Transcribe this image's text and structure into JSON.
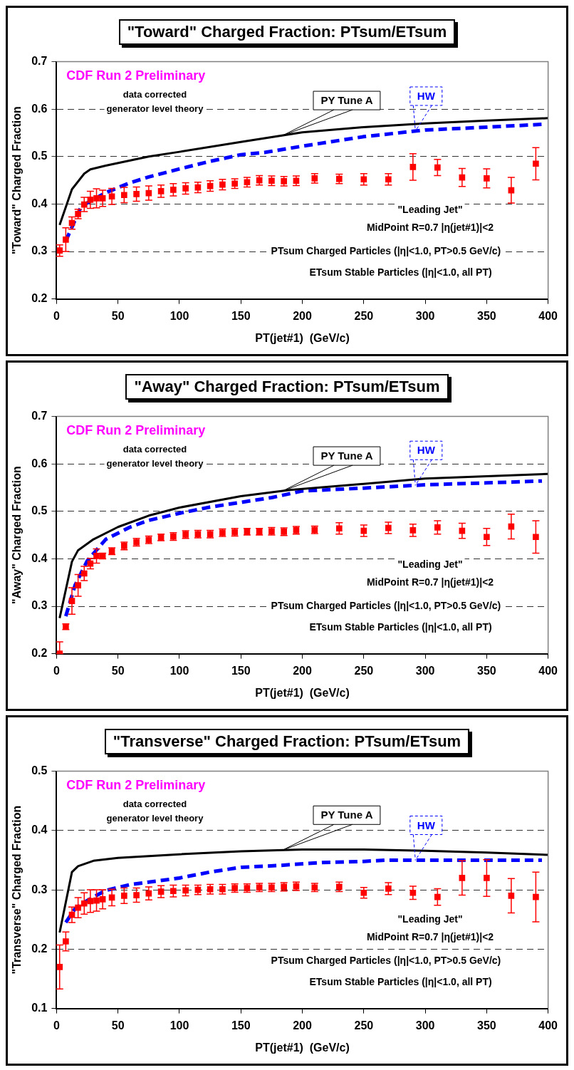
{
  "chart_data": [
    {
      "type": "line",
      "title": "\"Toward\" Charged Fraction: PTsum/ETsum",
      "xlabel": "PT(jet#1)  (GeV/c)",
      "ylabel": "\"Toward\" Charged Fraction",
      "xlim": [
        0,
        400
      ],
      "xticks": [
        0,
        50,
        100,
        150,
        200,
        250,
        300,
        350,
        400
      ],
      "ylim": [
        0.2,
        0.7
      ],
      "yticks": [
        0.2,
        0.3,
        0.4,
        0.5,
        0.6,
        0.7
      ],
      "grid": "y",
      "annotations": [
        "CDF Run 2 Preliminary",
        "data corrected",
        "generator level theory",
        "\"Leading Jet\"",
        "MidPoint R=0.7 |η(jet#1)|<2",
        "PTsum Charged Particles (|η|<1.0, PT>0.5 GeV/c)",
        "ETsum Stable Particles (|η|<1.0, all PT)"
      ],
      "series": [
        {
          "type": "scatter",
          "color": "#ff0000",
          "marker": "square",
          "x": [
            2.5,
            7.5,
            12.5,
            17.5,
            22.5,
            27.5,
            32.5,
            37.5,
            45,
            55,
            65,
            75,
            85,
            95,
            105,
            115,
            125,
            135,
            145,
            155,
            165,
            175,
            185,
            195,
            210,
            230,
            250,
            270,
            290,
            310,
            330,
            350,
            370,
            390
          ],
          "values": [
            0.302,
            0.325,
            0.36,
            0.379,
            0.399,
            0.409,
            0.412,
            0.412,
            0.416,
            0.419,
            0.421,
            0.423,
            0.427,
            0.43,
            0.433,
            0.435,
            0.438,
            0.441,
            0.443,
            0.446,
            0.45,
            0.449,
            0.448,
            0.449,
            0.454,
            0.453,
            0.452,
            0.452,
            0.478,
            0.477,
            0.456,
            0.454,
            0.429,
            0.485
          ],
          "errors": [
            0.012,
            0.025,
            0.013,
            0.01,
            0.015,
            0.018,
            0.02,
            0.017,
            0.017,
            0.016,
            0.015,
            0.015,
            0.013,
            0.013,
            0.012,
            0.011,
            0.011,
            0.011,
            0.01,
            0.01,
            0.01,
            0.01,
            0.01,
            0.01,
            0.01,
            0.01,
            0.012,
            0.012,
            0.028,
            0.017,
            0.019,
            0.02,
            0.027,
            0.034
          ]
        },
        {
          "type": "line",
          "name": "PY Tune A",
          "color": "#000000",
          "marker": "none",
          "line_style": "solid",
          "x": [
            2.5,
            12.5,
            22.5,
            27.5,
            40,
            75,
            100,
            150,
            200,
            250,
            300,
            350,
            400
          ],
          "values": [
            0.356,
            0.431,
            0.464,
            0.473,
            0.481,
            0.5,
            0.51,
            0.531,
            0.551,
            0.562,
            0.57,
            0.576,
            0.581
          ]
        },
        {
          "type": "line",
          "name": "HW",
          "color": "#0000ff",
          "marker": "none",
          "line_style": "dashed",
          "x": [
            7.5,
            20,
            40,
            60,
            75,
            100,
            125,
            150,
            170,
            200,
            250,
            300,
            350,
            395
          ],
          "values": [
            0.322,
            0.395,
            0.424,
            0.445,
            0.457,
            0.474,
            0.49,
            0.504,
            0.509,
            0.522,
            0.542,
            0.556,
            0.562,
            0.568
          ]
        }
      ]
    },
    {
      "type": "line",
      "title": "\"Away\" Charged Fraction: PTsum/ETsum",
      "xlabel": "PT(jet#1)  (GeV/c)",
      "ylabel": "\"Away\" Charged Fraction",
      "xlim": [
        0,
        400
      ],
      "xticks": [
        0,
        50,
        100,
        150,
        200,
        250,
        300,
        350,
        400
      ],
      "ylim": [
        0.2,
        0.7
      ],
      "yticks": [
        0.2,
        0.3,
        0.4,
        0.5,
        0.6,
        0.7
      ],
      "grid": "y",
      "annotations": [
        "CDF Run 2 Preliminary",
        "data corrected",
        "generator level theory",
        "\"Leading Jet\"",
        "MidPoint R=0.7 |η(jet#1)|<2",
        "PTsum Charged Particles (|η|<1.0, PT>0.5 GeV/c)",
        "ETsum Stable Particles (|η|<1.0, all PT)"
      ],
      "series": [
        {
          "type": "scatter",
          "color": "#ff0000",
          "marker": "square",
          "x": [
            2.5,
            7.5,
            12.5,
            17.5,
            22.5,
            27.5,
            32.5,
            37.5,
            45,
            55,
            65,
            75,
            85,
            95,
            105,
            115,
            125,
            135,
            145,
            155,
            165,
            175,
            185,
            195,
            210,
            230,
            250,
            270,
            290,
            310,
            330,
            350,
            370,
            390
          ],
          "values": [
            0.2,
            0.257,
            0.311,
            0.344,
            0.369,
            0.39,
            0.406,
            0.406,
            0.416,
            0.427,
            0.435,
            0.44,
            0.445,
            0.447,
            0.451,
            0.452,
            0.452,
            0.455,
            0.456,
            0.457,
            0.457,
            0.458,
            0.457,
            0.46,
            0.461,
            0.464,
            0.459,
            0.465,
            0.46,
            0.466,
            0.459,
            0.446,
            0.468,
            0.446
          ],
          "errors": [
            [
              0.2,
              0.225
            ],
            0.006,
            0.028,
            0.023,
            0.015,
            0.011,
            0.015,
            0.006,
            0.007,
            0.008,
            0.008,
            0.008,
            0.007,
            0.008,
            0.008,
            0.008,
            0.008,
            0.008,
            0.008,
            0.007,
            0.007,
            0.008,
            0.008,
            0.008,
            0.008,
            0.012,
            0.012,
            0.012,
            0.013,
            0.014,
            0.016,
            0.018,
            0.026,
            0.034
          ]
        },
        {
          "type": "line",
          "name": "PY Tune A",
          "color": "#000000",
          "marker": "none",
          "line_style": "solid",
          "x": [
            2.5,
            12.5,
            17.5,
            30,
            50,
            75,
            100,
            150,
            190,
            250,
            300,
            400
          ],
          "values": [
            0.275,
            0.394,
            0.418,
            0.441,
            0.467,
            0.491,
            0.508,
            0.532,
            0.545,
            0.558,
            0.569,
            0.579
          ]
        },
        {
          "type": "line",
          "name": "HW",
          "color": "#0000ff",
          "marker": "none",
          "line_style": "dashed",
          "x": [
            7.5,
            15,
            25,
            40,
            60,
            75,
            100,
            125,
            150,
            175,
            200,
            250,
            300,
            350,
            395
          ],
          "values": [
            0.279,
            0.344,
            0.396,
            0.441,
            0.467,
            0.481,
            0.496,
            0.509,
            0.519,
            0.529,
            0.543,
            0.549,
            0.556,
            0.56,
            0.564
          ]
        }
      ]
    },
    {
      "type": "line",
      "title": "\"Transverse\" Charged Fraction: PTsum/ETsum",
      "xlabel": "PT(jet#1)  (GeV/c)",
      "ylabel": "\"Transverse\" Charged Fraction",
      "xlim": [
        0,
        400
      ],
      "xticks": [
        0,
        50,
        100,
        150,
        200,
        250,
        300,
        350,
        400
      ],
      "ylim": [
        0.1,
        0.5
      ],
      "yticks": [
        0.1,
        0.2,
        0.3,
        0.4,
        0.5
      ],
      "grid": "y",
      "annotations": [
        "CDF Run 2 Preliminary",
        "data corrected",
        "generator level theory",
        "\"Leading Jet\"",
        "MidPoint R=0.7 |η(jet#1)|<2",
        "PTsum Charged Particles (|η|<1.0, PT>0.5 GeV/c)",
        "ETsum Stable Particles (|η|<1.0, all PT)"
      ],
      "series": [
        {
          "type": "scatter",
          "color": "#ff0000",
          "marker": "square",
          "x": [
            2.5,
            7.5,
            12.5,
            17.5,
            22.5,
            27.5,
            32.5,
            37.5,
            45,
            55,
            65,
            75,
            85,
            95,
            105,
            115,
            125,
            135,
            145,
            155,
            165,
            175,
            185,
            195,
            210,
            230,
            250,
            270,
            290,
            310,
            330,
            350,
            370,
            390
          ],
          "values": [
            0.17,
            0.213,
            0.258,
            0.27,
            0.277,
            0.281,
            0.282,
            0.284,
            0.287,
            0.29,
            0.291,
            0.294,
            0.297,
            0.298,
            0.299,
            0.3,
            0.301,
            0.301,
            0.303,
            0.303,
            0.304,
            0.304,
            0.305,
            0.306,
            0.304,
            0.305,
            0.295,
            0.302,
            0.295,
            0.288,
            0.32,
            0.32,
            0.29,
            0.288
          ],
          "errors": [
            0.037,
            0.016,
            0.013,
            0.017,
            0.018,
            0.019,
            0.018,
            0.016,
            0.014,
            0.013,
            0.012,
            0.011,
            0.01,
            0.01,
            0.009,
            0.008,
            0.008,
            0.008,
            0.007,
            0.007,
            0.007,
            0.007,
            0.007,
            0.007,
            0.007,
            0.008,
            0.009,
            0.01,
            0.011,
            0.014,
            0.029,
            0.031,
            0.029,
            0.042
          ]
        },
        {
          "type": "line",
          "name": "PY Tune A",
          "color": "#000000",
          "marker": "none",
          "line_style": "solid",
          "x": [
            2.5,
            12.5,
            17.5,
            30,
            50,
            100,
            150,
            200,
            250,
            300,
            350,
            400
          ],
          "values": [
            0.228,
            0.33,
            0.34,
            0.349,
            0.354,
            0.36,
            0.365,
            0.368,
            0.368,
            0.366,
            0.363,
            0.359
          ]
        },
        {
          "type": "line",
          "name": "HW",
          "color": "#0000ff",
          "marker": "none",
          "line_style": "dashed",
          "x": [
            7.5,
            15,
            25,
            40,
            60,
            75,
            100,
            125,
            150,
            170,
            180,
            216,
            250,
            268,
            300,
            350,
            395
          ],
          "values": [
            0.245,
            0.268,
            0.282,
            0.299,
            0.309,
            0.313,
            0.32,
            0.33,
            0.338,
            0.34,
            0.341,
            0.346,
            0.348,
            0.35,
            0.35,
            0.35,
            0.35
          ]
        }
      ]
    }
  ]
}
